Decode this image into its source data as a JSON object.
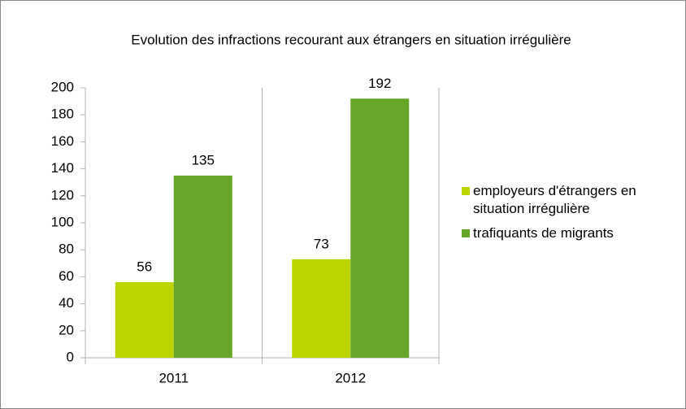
{
  "chart_data": {
    "type": "bar",
    "title": "Evolution des infractions recourant aux étrangers en situation irrégulière",
    "categories": [
      "2011",
      "2012"
    ],
    "series": [
      {
        "name": "employeurs d'étrangers en situation irrégulière",
        "color": "#bcd400",
        "values": [
          56,
          73
        ]
      },
      {
        "name": "trafiquants de migrants",
        "color": "#66a72a",
        "values": [
          135,
          192
        ]
      }
    ],
    "ylim": [
      0,
      200
    ],
    "yticks": [
      0,
      20,
      40,
      60,
      80,
      100,
      120,
      140,
      160,
      180,
      200
    ],
    "legend": "right"
  }
}
